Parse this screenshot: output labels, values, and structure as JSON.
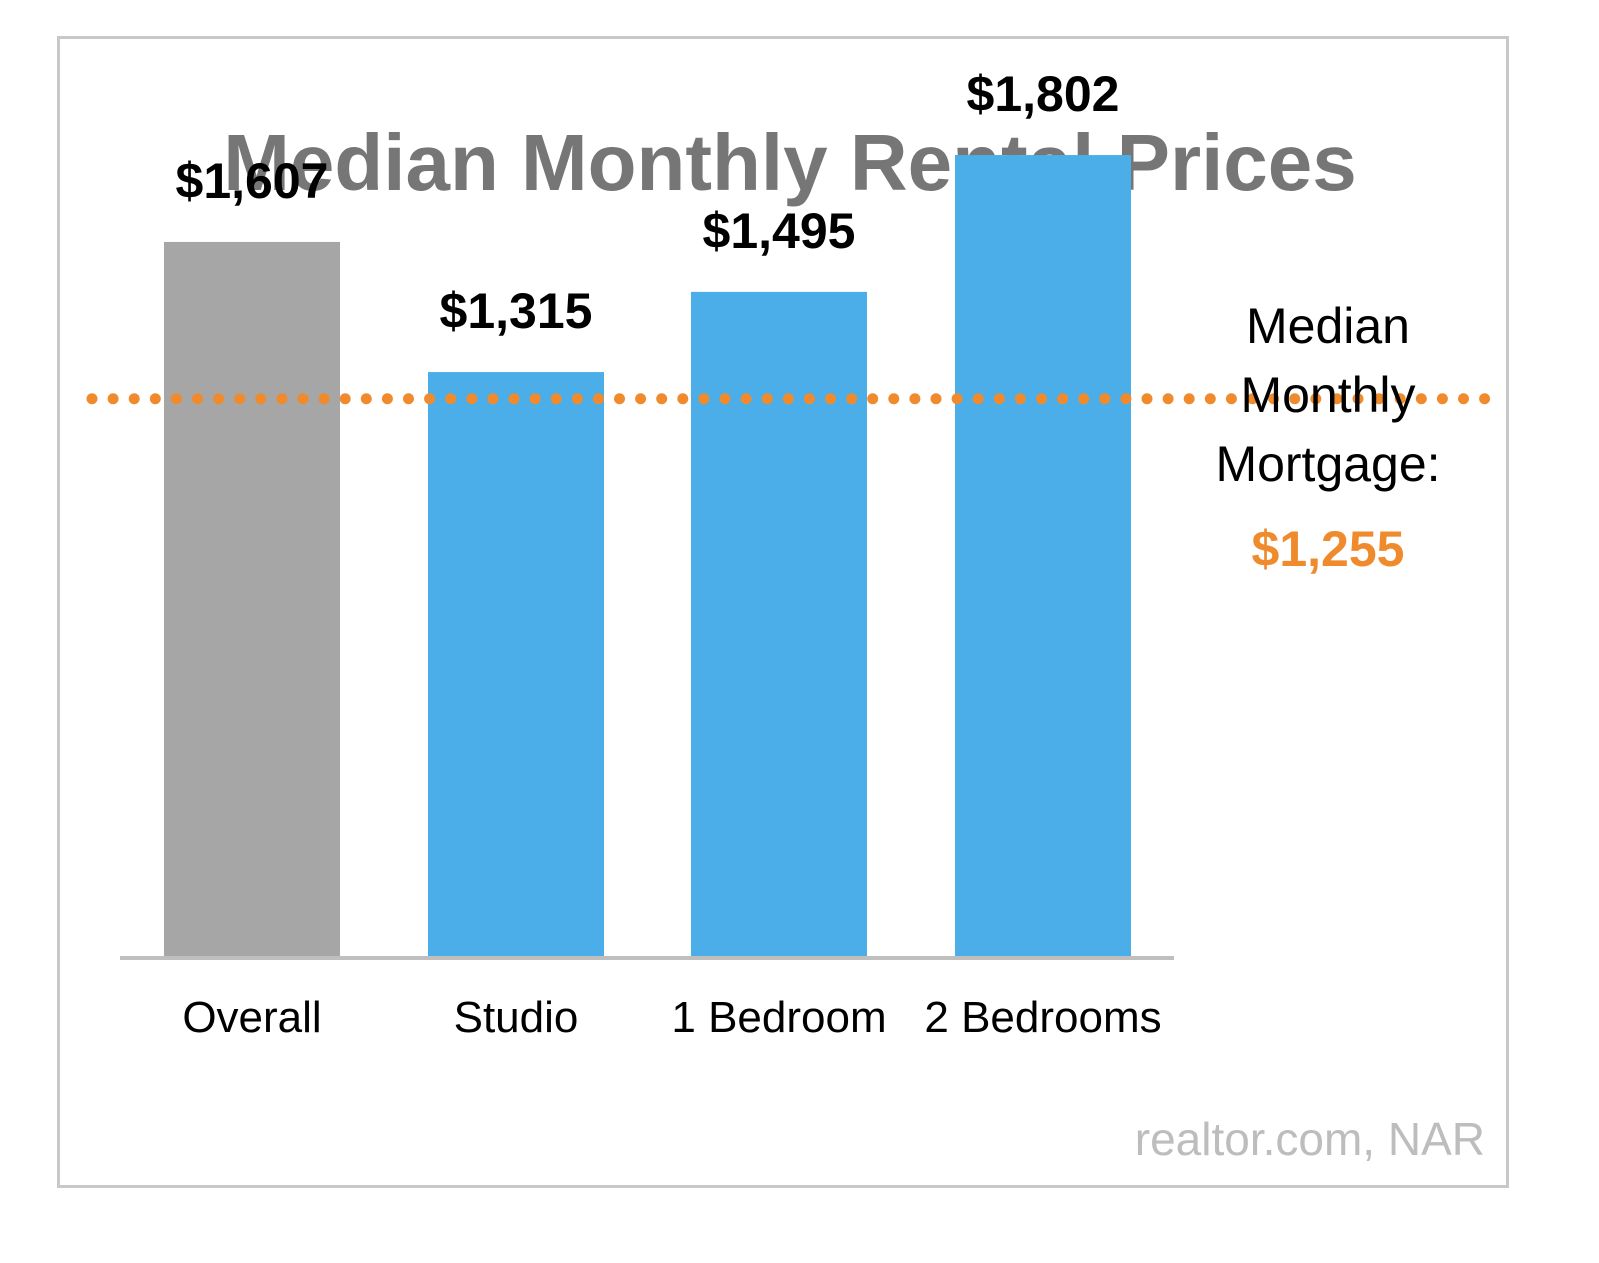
{
  "colors": {
    "title": "#767676",
    "overall_bar": "#a6a6a6",
    "bar": "#4baee8",
    "reference_line": "#ef8b2c",
    "baseline": "#bfbfbf",
    "source": "#bdbdbd"
  },
  "chart_data": {
    "type": "bar",
    "title": "Median Monthly Rental Prices",
    "categories": [
      "Overall",
      "Studio",
      "1 Bedroom",
      "2 Bedrooms"
    ],
    "values": [
      1607,
      1315,
      1495,
      1802
    ],
    "value_labels": [
      "$1,607",
      "$1,315",
      "$1,495",
      "$1,802"
    ],
    "ylim": [
      0,
      2150
    ],
    "grid": false,
    "reference_line": {
      "value": 1255,
      "label_lines": [
        "Median",
        "Monthly",
        "Mortgage:"
      ],
      "value_label": "$1,255",
      "style": "dotted"
    }
  },
  "source": "realtor.com, NAR"
}
